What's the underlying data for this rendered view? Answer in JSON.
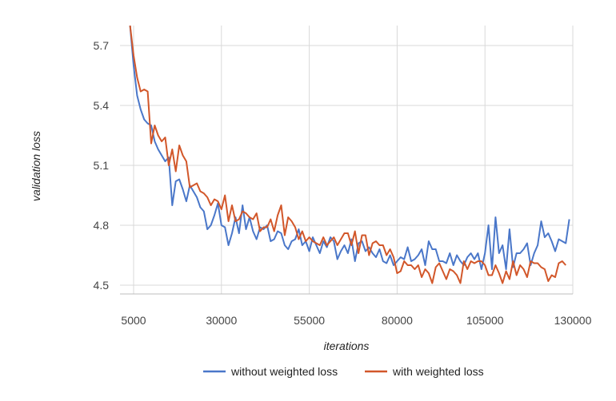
{
  "chart_data": {
    "type": "line",
    "xlabel": "iterations",
    "ylabel": "validation loss",
    "xlim": [
      3000,
      130000
    ],
    "ylim": [
      4.46,
      5.8
    ],
    "x_ticks": [
      5000,
      30000,
      55000,
      80000,
      105000,
      130000
    ],
    "y_ticks": [
      4.5,
      4.8,
      5.1,
      5.4,
      5.7
    ],
    "x_tick_labels": [
      "5000",
      "30000",
      "55000",
      "80000",
      "105000",
      "130000"
    ],
    "y_tick_labels": [
      "4.5",
      "4.8",
      "5.1",
      "5.4",
      "5.7"
    ],
    "grid": true,
    "legend_position": "bottom",
    "series": [
      {
        "name": "without weighted loss",
        "color": "#4A77C9",
        "points": [
          [
            4000,
            5.8
          ],
          [
            5000,
            5.6
          ],
          [
            6000,
            5.45
          ],
          [
            7000,
            5.38
          ],
          [
            8000,
            5.33
          ],
          [
            9000,
            5.31
          ],
          [
            10000,
            5.3
          ],
          [
            11000,
            5.22
          ],
          [
            12000,
            5.18
          ],
          [
            13000,
            5.15
          ],
          [
            14000,
            5.12
          ],
          [
            15000,
            5.14
          ],
          [
            16000,
            4.9
          ],
          [
            17000,
            5.02
          ],
          [
            18000,
            5.03
          ],
          [
            19000,
            4.98
          ],
          [
            20000,
            4.92
          ],
          [
            21000,
            5.0
          ],
          [
            22000,
            4.97
          ],
          [
            23000,
            4.94
          ],
          [
            24000,
            4.89
          ],
          [
            25000,
            4.87
          ],
          [
            26000,
            4.78
          ],
          [
            27000,
            4.8
          ],
          [
            28000,
            4.85
          ],
          [
            29000,
            4.91
          ],
          [
            30000,
            4.8
          ],
          [
            31000,
            4.79
          ],
          [
            32000,
            4.7
          ],
          [
            33000,
            4.76
          ],
          [
            34000,
            4.84
          ],
          [
            35000,
            4.76
          ],
          [
            36000,
            4.9
          ],
          [
            37000,
            4.78
          ],
          [
            38000,
            4.84
          ],
          [
            39000,
            4.77
          ],
          [
            40000,
            4.73
          ],
          [
            41000,
            4.79
          ],
          [
            42000,
            4.78
          ],
          [
            43000,
            4.8
          ],
          [
            44000,
            4.72
          ],
          [
            45000,
            4.73
          ],
          [
            46000,
            4.77
          ],
          [
            47000,
            4.76
          ],
          [
            48000,
            4.7
          ],
          [
            49000,
            4.68
          ],
          [
            50000,
            4.72
          ],
          [
            51000,
            4.73
          ],
          [
            52000,
            4.78
          ],
          [
            53000,
            4.7
          ],
          [
            54000,
            4.72
          ],
          [
            55000,
            4.67
          ],
          [
            56000,
            4.74
          ],
          [
            57000,
            4.7
          ],
          [
            58000,
            4.66
          ],
          [
            59000,
            4.72
          ],
          [
            60000,
            4.69
          ],
          [
            61000,
            4.74
          ],
          [
            62000,
            4.72
          ],
          [
            63000,
            4.63
          ],
          [
            64000,
            4.67
          ],
          [
            65000,
            4.7
          ],
          [
            66000,
            4.66
          ],
          [
            67000,
            4.73
          ],
          [
            68000,
            4.62
          ],
          [
            69000,
            4.71
          ],
          [
            70000,
            4.72
          ],
          [
            71000,
            4.67
          ],
          [
            72000,
            4.69
          ],
          [
            73000,
            4.66
          ],
          [
            74000,
            4.64
          ],
          [
            75000,
            4.68
          ],
          [
            76000,
            4.62
          ],
          [
            77000,
            4.61
          ],
          [
            78000,
            4.65
          ],
          [
            79000,
            4.6
          ],
          [
            80000,
            4.62
          ],
          [
            81000,
            4.64
          ],
          [
            82000,
            4.63
          ],
          [
            83000,
            4.69
          ],
          [
            84000,
            4.62
          ],
          [
            85000,
            4.63
          ],
          [
            86000,
            4.65
          ],
          [
            87000,
            4.68
          ],
          [
            88000,
            4.6
          ],
          [
            89000,
            4.72
          ],
          [
            90000,
            4.68
          ],
          [
            91000,
            4.68
          ],
          [
            92000,
            4.62
          ],
          [
            93000,
            4.62
          ],
          [
            94000,
            4.61
          ],
          [
            95000,
            4.66
          ],
          [
            96000,
            4.6
          ],
          [
            97000,
            4.65
          ],
          [
            98000,
            4.62
          ],
          [
            99000,
            4.6
          ],
          [
            100000,
            4.64
          ],
          [
            101000,
            4.66
          ],
          [
            102000,
            4.63
          ],
          [
            103000,
            4.66
          ],
          [
            104000,
            4.58
          ],
          [
            105000,
            4.66
          ],
          [
            106000,
            4.8
          ],
          [
            107000,
            4.58
          ],
          [
            108000,
            4.84
          ],
          [
            109000,
            4.66
          ],
          [
            110000,
            4.7
          ],
          [
            111000,
            4.58
          ],
          [
            112000,
            4.78
          ],
          [
            113000,
            4.59
          ],
          [
            114000,
            4.66
          ],
          [
            115000,
            4.66
          ],
          [
            116000,
            4.68
          ],
          [
            117000,
            4.71
          ],
          [
            118000,
            4.6
          ],
          [
            119000,
            4.66
          ],
          [
            120000,
            4.7
          ],
          [
            121000,
            4.82
          ],
          [
            122000,
            4.74
          ],
          [
            123000,
            4.76
          ],
          [
            124000,
            4.72
          ],
          [
            125000,
            4.67
          ],
          [
            126000,
            4.73
          ],
          [
            127000,
            4.72
          ],
          [
            128000,
            4.71
          ],
          [
            129000,
            4.83
          ]
        ]
      },
      {
        "name": "with weighted loss",
        "color": "#D2572A",
        "points": [
          [
            4000,
            5.8
          ],
          [
            5000,
            5.65
          ],
          [
            6000,
            5.54
          ],
          [
            7000,
            5.47
          ],
          [
            8000,
            5.48
          ],
          [
            9000,
            5.47
          ],
          [
            10000,
            5.21
          ],
          [
            11000,
            5.3
          ],
          [
            12000,
            5.25
          ],
          [
            13000,
            5.22
          ],
          [
            14000,
            5.24
          ],
          [
            15000,
            5.1
          ],
          [
            16000,
            5.18
          ],
          [
            17000,
            5.07
          ],
          [
            18000,
            5.2
          ],
          [
            19000,
            5.15
          ],
          [
            20000,
            5.12
          ],
          [
            21000,
            4.99
          ],
          [
            22000,
            5.0
          ],
          [
            23000,
            5.01
          ],
          [
            24000,
            4.97
          ],
          [
            25000,
            4.96
          ],
          [
            26000,
            4.94
          ],
          [
            27000,
            4.9
          ],
          [
            28000,
            4.93
          ],
          [
            29000,
            4.92
          ],
          [
            30000,
            4.88
          ],
          [
            31000,
            4.95
          ],
          [
            32000,
            4.82
          ],
          [
            33000,
            4.9
          ],
          [
            34000,
            4.82
          ],
          [
            35000,
            4.83
          ],
          [
            36000,
            4.87
          ],
          [
            37000,
            4.86
          ],
          [
            38000,
            4.84
          ],
          [
            39000,
            4.83
          ],
          [
            40000,
            4.86
          ],
          [
            41000,
            4.77
          ],
          [
            42000,
            4.79
          ],
          [
            43000,
            4.79
          ],
          [
            44000,
            4.83
          ],
          [
            45000,
            4.77
          ],
          [
            46000,
            4.85
          ],
          [
            47000,
            4.9
          ],
          [
            48000,
            4.75
          ],
          [
            49000,
            4.84
          ],
          [
            50000,
            4.82
          ],
          [
            51000,
            4.79
          ],
          [
            52000,
            4.73
          ],
          [
            53000,
            4.77
          ],
          [
            54000,
            4.72
          ],
          [
            55000,
            4.74
          ],
          [
            56000,
            4.72
          ],
          [
            57000,
            4.71
          ],
          [
            58000,
            4.7
          ],
          [
            59000,
            4.74
          ],
          [
            60000,
            4.7
          ],
          [
            61000,
            4.72
          ],
          [
            62000,
            4.74
          ],
          [
            63000,
            4.7
          ],
          [
            64000,
            4.73
          ],
          [
            65000,
            4.76
          ],
          [
            66000,
            4.76
          ],
          [
            67000,
            4.7
          ],
          [
            68000,
            4.77
          ],
          [
            69000,
            4.66
          ],
          [
            70000,
            4.75
          ],
          [
            71000,
            4.75
          ],
          [
            72000,
            4.65
          ],
          [
            73000,
            4.71
          ],
          [
            74000,
            4.72
          ],
          [
            75000,
            4.7
          ],
          [
            76000,
            4.7
          ],
          [
            77000,
            4.65
          ],
          [
            78000,
            4.68
          ],
          [
            79000,
            4.64
          ],
          [
            80000,
            4.56
          ],
          [
            81000,
            4.57
          ],
          [
            82000,
            4.62
          ],
          [
            83000,
            4.6
          ],
          [
            84000,
            4.6
          ],
          [
            85000,
            4.58
          ],
          [
            86000,
            4.6
          ],
          [
            87000,
            4.54
          ],
          [
            88000,
            4.58
          ],
          [
            89000,
            4.56
          ],
          [
            90000,
            4.51
          ],
          [
            91000,
            4.59
          ],
          [
            92000,
            4.61
          ],
          [
            93000,
            4.57
          ],
          [
            94000,
            4.53
          ],
          [
            95000,
            4.58
          ],
          [
            96000,
            4.57
          ],
          [
            97000,
            4.55
          ],
          [
            98000,
            4.51
          ],
          [
            99000,
            4.62
          ],
          [
            100000,
            4.58
          ],
          [
            101000,
            4.62
          ],
          [
            102000,
            4.61
          ],
          [
            103000,
            4.62
          ],
          [
            104000,
            4.62
          ],
          [
            105000,
            4.6
          ],
          [
            106000,
            4.55
          ],
          [
            107000,
            4.55
          ],
          [
            108000,
            4.6
          ],
          [
            109000,
            4.56
          ],
          [
            110000,
            4.51
          ],
          [
            111000,
            4.57
          ],
          [
            112000,
            4.53
          ],
          [
            113000,
            4.62
          ],
          [
            114000,
            4.55
          ],
          [
            115000,
            4.6
          ],
          [
            116000,
            4.58
          ],
          [
            117000,
            4.54
          ],
          [
            118000,
            4.62
          ],
          [
            119000,
            4.61
          ],
          [
            120000,
            4.61
          ],
          [
            121000,
            4.59
          ],
          [
            122000,
            4.58
          ],
          [
            123000,
            4.52
          ],
          [
            124000,
            4.55
          ],
          [
            125000,
            4.54
          ],
          [
            126000,
            4.61
          ],
          [
            127000,
            4.62
          ],
          [
            128000,
            4.6
          ]
        ]
      }
    ]
  }
}
